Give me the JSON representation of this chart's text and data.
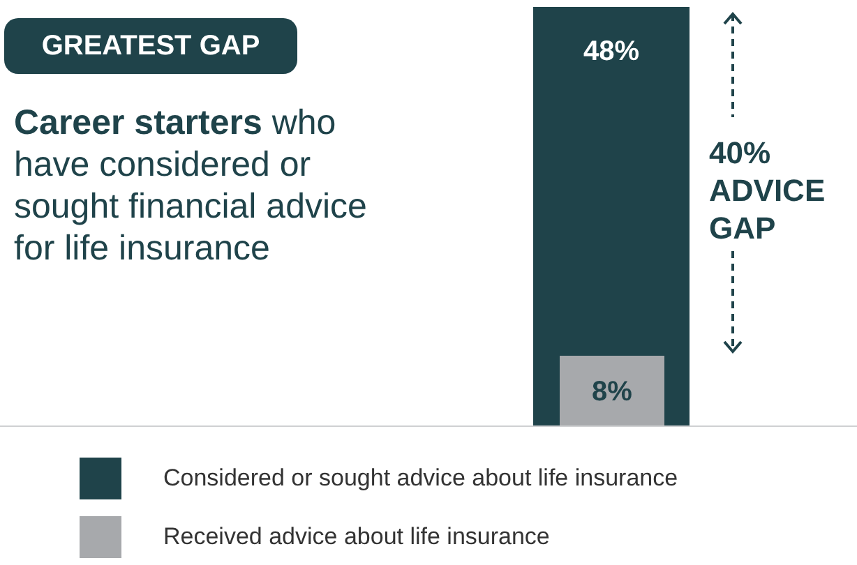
{
  "chart_data": {
    "type": "bar",
    "title": "GREATEST GAP",
    "subtitle": "Career starters who have considered or sought financial advice for life insurance",
    "categories": [
      null
    ],
    "series": [
      {
        "name": "Considered or sought advice about life insurance",
        "color": "#1f434a",
        "values": [
          48
        ],
        "value_labels": [
          "48%"
        ]
      },
      {
        "name": "Received advice about life insurance",
        "color": "#a7a9ac",
        "values": [
          8
        ],
        "value_labels": [
          "8%"
        ]
      }
    ],
    "annotations": [
      "40% ADVICE GAP"
    ],
    "legend": "bottom",
    "grid": false
  }
}
